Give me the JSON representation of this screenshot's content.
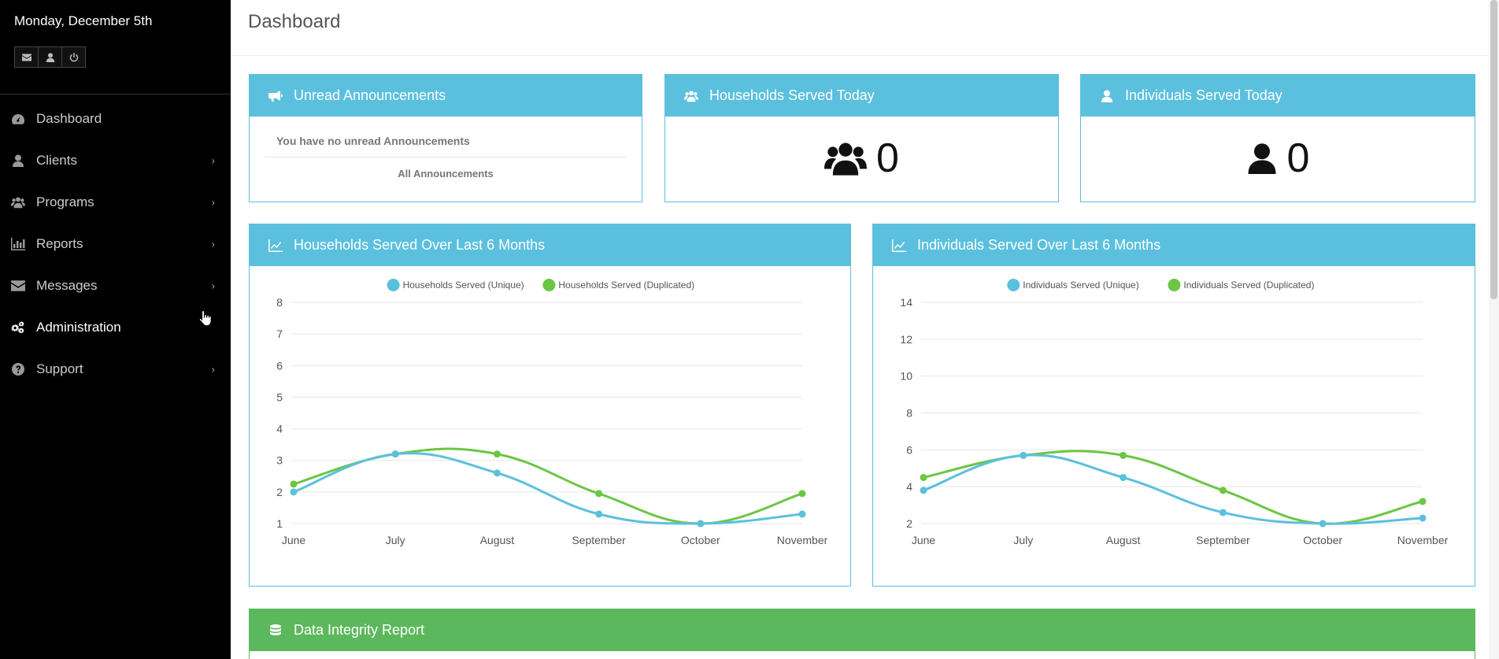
{
  "sidebar": {
    "date": "Monday, December 5th",
    "quick_buttons": [
      "envelope-icon",
      "user-icon",
      "power-icon"
    ],
    "items": [
      {
        "label": "Dashboard",
        "icon": "dashboard-icon",
        "chevron": false,
        "active": false
      },
      {
        "label": "Clients",
        "icon": "user-icon",
        "chevron": true,
        "active": false
      },
      {
        "label": "Programs",
        "icon": "users-icon",
        "chevron": true,
        "active": false
      },
      {
        "label": "Reports",
        "icon": "bar-chart-icon",
        "chevron": true,
        "active": false
      },
      {
        "label": "Messages",
        "icon": "envelope-icon",
        "chevron": true,
        "active": false
      },
      {
        "label": "Administration",
        "icon": "cogs-icon",
        "chevron": true,
        "active": true
      },
      {
        "label": "Support",
        "icon": "question-circle-icon",
        "chevron": true,
        "active": false
      }
    ]
  },
  "header": {
    "title": "Dashboard"
  },
  "panels": {
    "announcements": {
      "title": "Unread Announcements",
      "message": "You have no unread Announcements",
      "link": "All Announcements"
    },
    "households_today": {
      "title": "Households Served Today",
      "value": "0"
    },
    "individuals_today": {
      "title": "Individuals Served Today",
      "value": "0"
    },
    "households_chart": {
      "title": "Households Served Over Last 6 Months"
    },
    "individuals_chart": {
      "title": "Individuals Served Over Last 6 Months"
    },
    "data_integrity": {
      "title": "Data Integrity Report"
    }
  },
  "colors": {
    "panel_info": "#5bc0de",
    "panel_success": "#5cb85c",
    "series_unique": "#5bc0de",
    "series_duplicated": "#6cc644"
  },
  "chart_data": [
    {
      "type": "line",
      "categories": [
        "June",
        "July",
        "August",
        "September",
        "October",
        "November"
      ],
      "series": [
        {
          "name": "Households Served (Unique)",
          "values": [
            2,
            3.2,
            2.6,
            1.3,
            1,
            1.3
          ]
        },
        {
          "name": "Households Served (Duplicated)",
          "values": [
            2.25,
            3.2,
            3.2,
            1.95,
            1,
            1.95
          ]
        }
      ],
      "yticks": [
        1,
        2,
        3,
        4,
        5,
        6,
        7,
        8
      ],
      "ylim": [
        1,
        8
      ],
      "grid": true,
      "legend": "top-center"
    },
    {
      "type": "line",
      "categories": [
        "June",
        "July",
        "August",
        "September",
        "October",
        "November"
      ],
      "series": [
        {
          "name": "Individuals Served (Unique)",
          "values": [
            3.8,
            5.7,
            4.5,
            2.6,
            2,
            2.3
          ]
        },
        {
          "name": "Individuals Served (Duplicated)",
          "values": [
            4.5,
            5.7,
            5.7,
            3.8,
            2,
            3.2
          ]
        }
      ],
      "yticks": [
        2,
        4,
        6,
        8,
        10,
        12,
        14
      ],
      "ylim": [
        2,
        14
      ],
      "grid": true,
      "legend": "top-center"
    }
  ]
}
